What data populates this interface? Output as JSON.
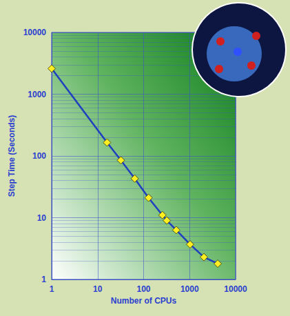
{
  "chart_data": {
    "type": "line",
    "xlabel": "Number of CPUs",
    "ylabel": "Step Time (Seconds)",
    "x": [
      1,
      16,
      32,
      64,
      128,
      256,
      320,
      512,
      1024,
      2048,
      4096
    ],
    "values": [
      2600,
      165,
      85,
      43,
      21,
      11,
      9,
      6.3,
      3.7,
      2.3,
      1.8
    ],
    "color": "#1f3fbf",
    "marker": "diamond",
    "xlim": [
      1,
      10000
    ],
    "xticks": [
      1,
      10,
      100,
      1000,
      10000
    ],
    "ylim": [
      1,
      10000
    ],
    "yticks": [
      1,
      10,
      100,
      1000,
      10000
    ],
    "log": true,
    "grid": true
  }
}
